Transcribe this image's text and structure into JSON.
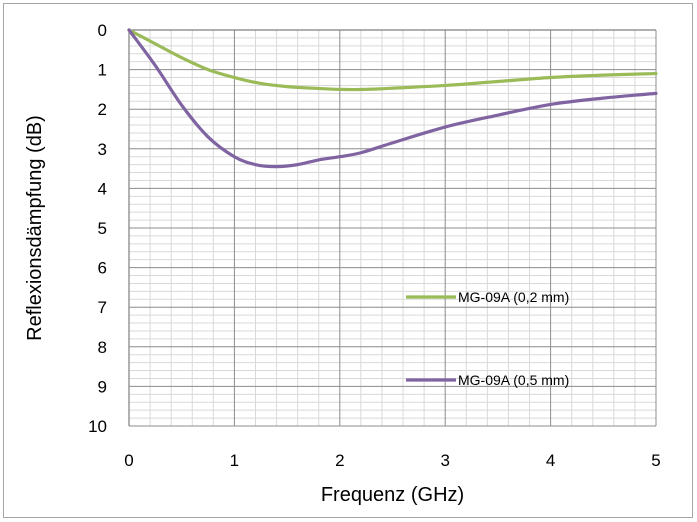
{
  "chart_data": {
    "type": "line",
    "title": "",
    "xlabel": "Frequenz (GHz)",
    "ylabel": "Reflexionsdämpfung (dB)",
    "xlim": [
      0,
      5
    ],
    "ylim": [
      0,
      10
    ],
    "y_inverted": true,
    "x_ticks": [
      "0",
      "1",
      "2",
      "3",
      "4",
      "5"
    ],
    "y_ticks": [
      "0",
      "1",
      "2",
      "3",
      "4",
      "5",
      "6",
      "7",
      "8",
      "9",
      "10"
    ],
    "grid": true,
    "series": [
      {
        "name": "MG-09A (0,2 mm)",
        "color": "#9bbb59",
        "x": [
          0,
          0.25,
          0.5,
          0.75,
          1.0,
          1.25,
          1.5,
          1.75,
          2.0,
          2.25,
          2.5,
          3.0,
          3.5,
          4.0,
          4.5,
          5.0
        ],
        "y": [
          0,
          0.35,
          0.7,
          1.0,
          1.2,
          1.35,
          1.43,
          1.47,
          1.5,
          1.5,
          1.47,
          1.4,
          1.3,
          1.2,
          1.14,
          1.1
        ]
      },
      {
        "name": "MG-09A (0,5 mm)",
        "color": "#8064a2",
        "x": [
          0,
          0.25,
          0.5,
          0.75,
          1.0,
          1.2,
          1.4,
          1.6,
          1.8,
          2.0,
          2.2,
          2.5,
          3.0,
          3.5,
          4.0,
          4.5,
          5.0
        ],
        "y": [
          0,
          0.9,
          1.9,
          2.7,
          3.2,
          3.4,
          3.45,
          3.4,
          3.28,
          3.2,
          3.1,
          2.85,
          2.45,
          2.15,
          1.88,
          1.72,
          1.6
        ]
      }
    ]
  }
}
